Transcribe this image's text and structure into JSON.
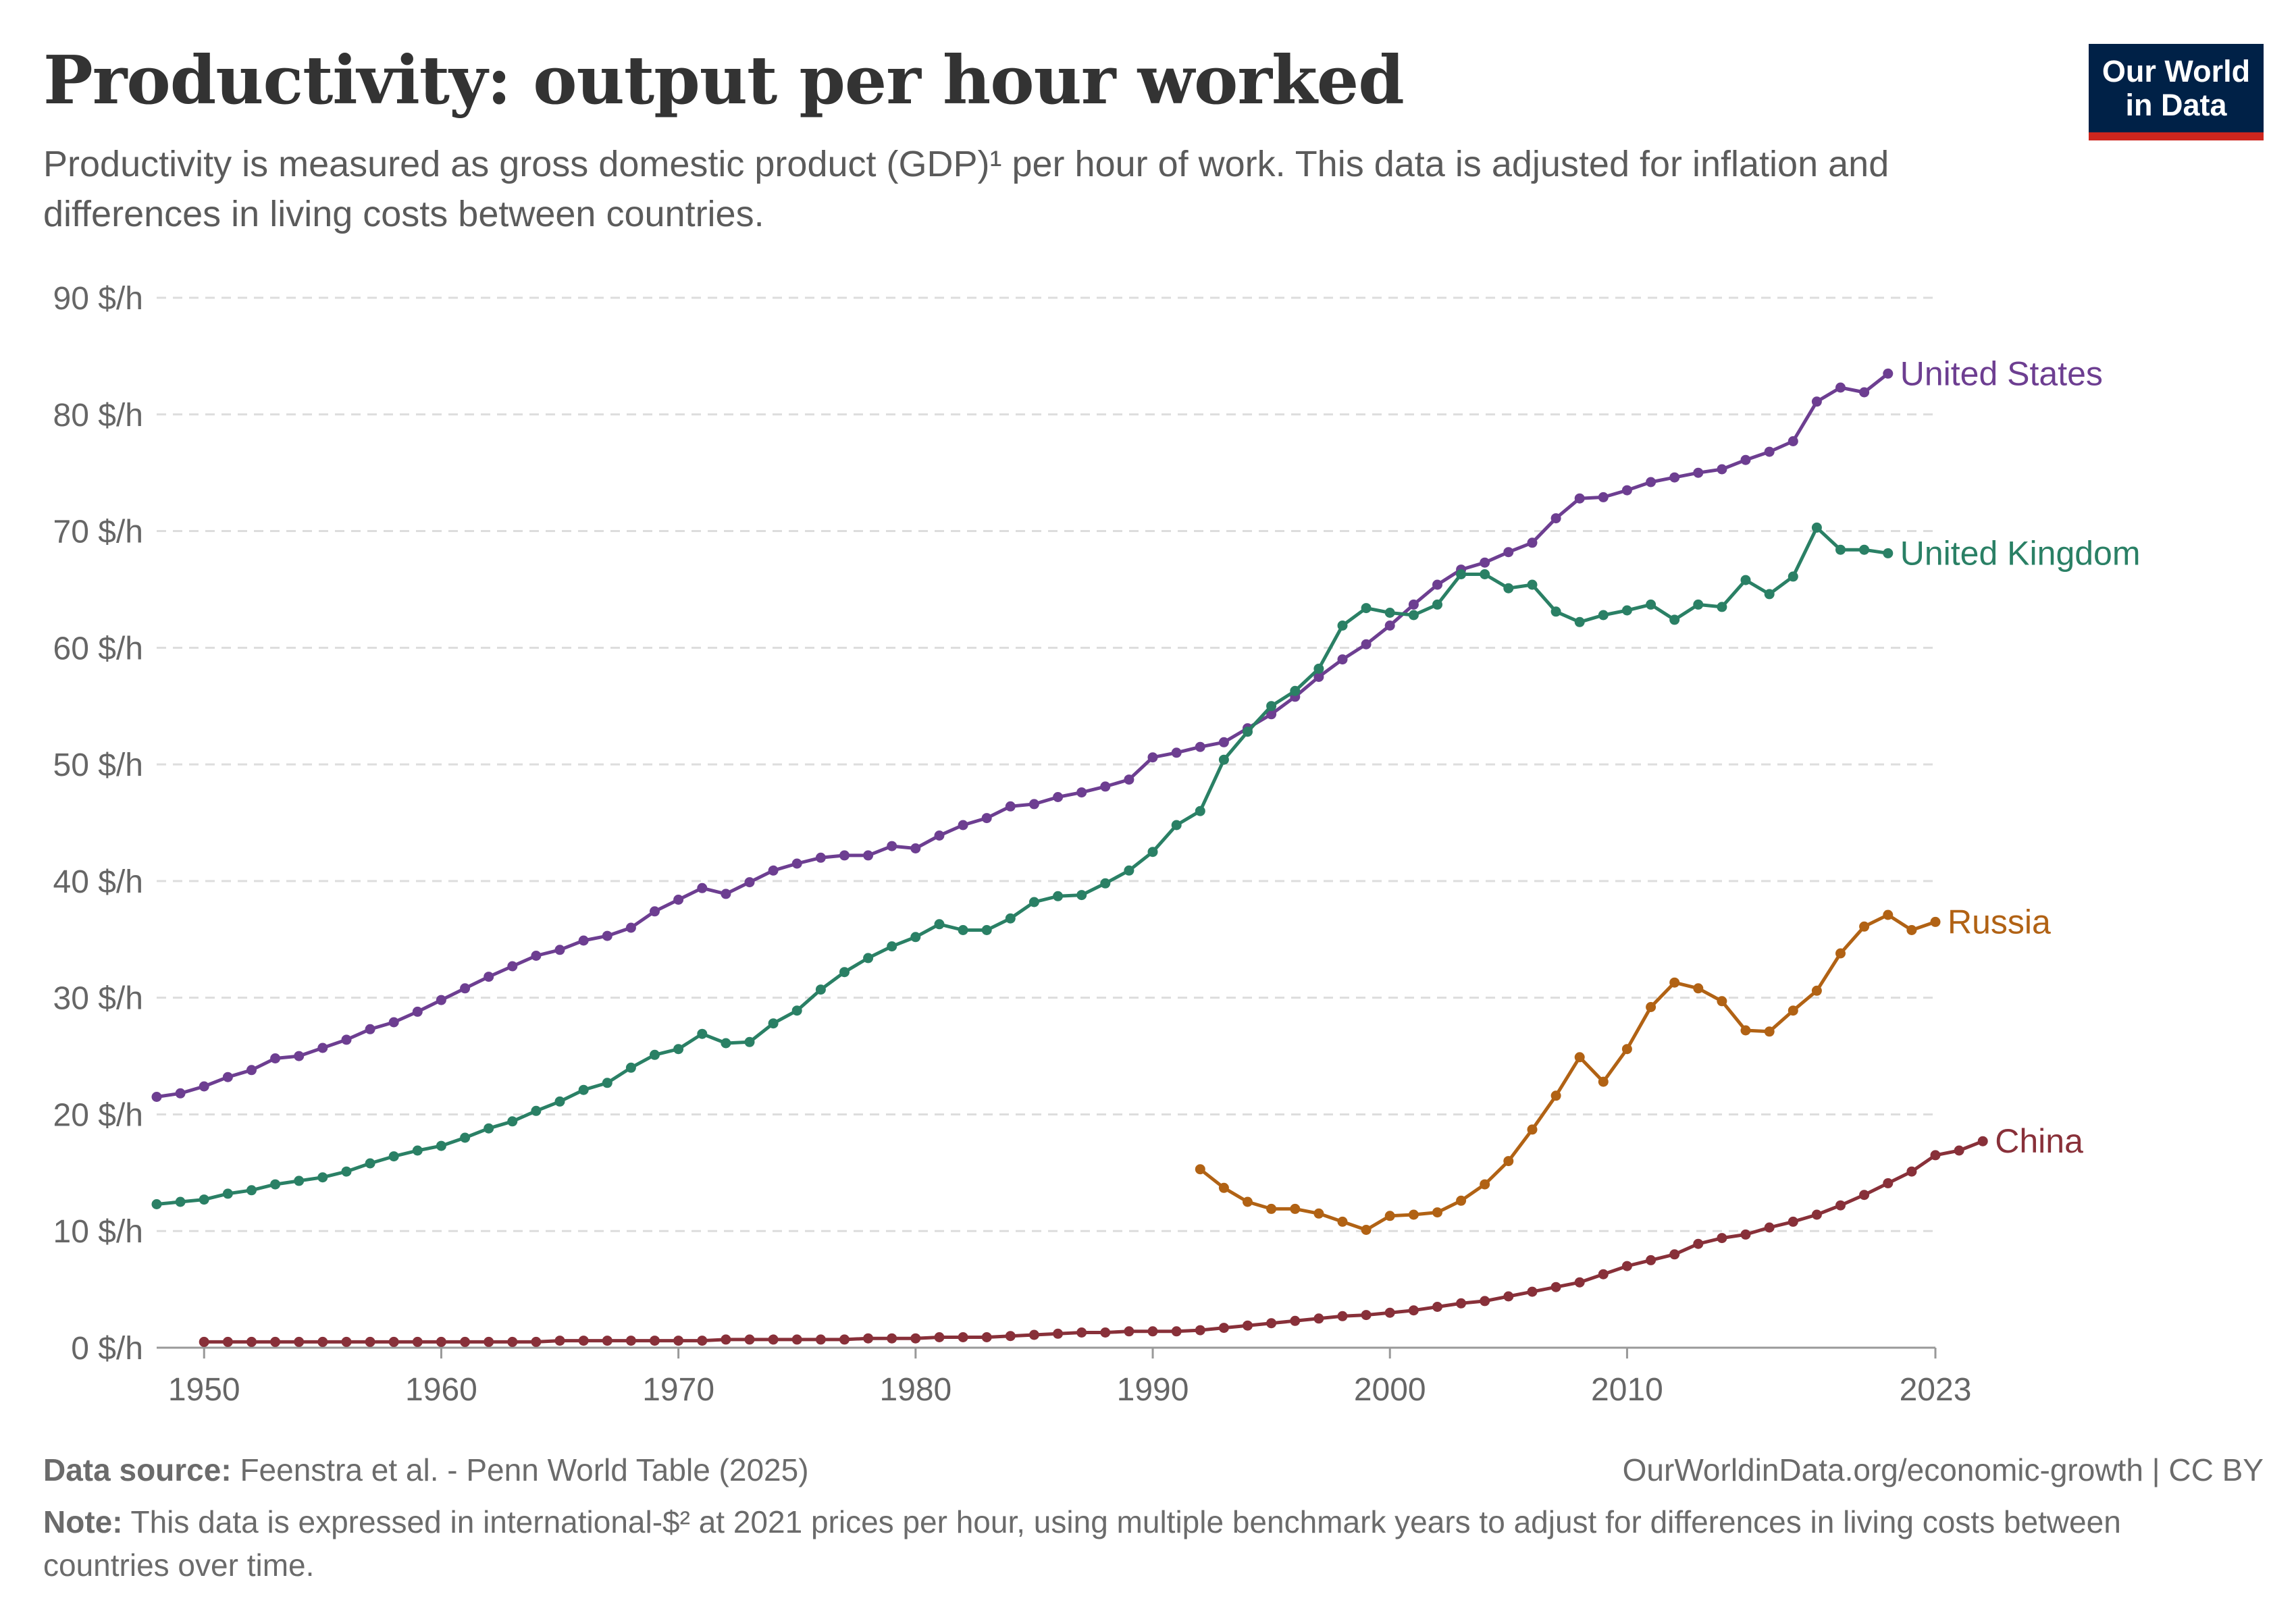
{
  "header": {
    "title": "Productivity: output per hour worked",
    "subtitle": "Productivity is measured as gross domestic product (GDP)¹ per hour of work. This data is adjusted for inflation and differences in living costs between countries."
  },
  "logo": {
    "line1": "Our World",
    "line2": "in Data"
  },
  "footer": {
    "source_label": "Data source:",
    "source_text": "Feenstra et al. - Penn World Table (2025)",
    "url": "OurWorldinData.org/economic-growth | CC BY",
    "note_label": "Note:",
    "note_text": "This data is expressed in international-$² at 2021 prices per hour, using multiple benchmark years to adjust for differences in living costs between countries over time."
  },
  "colors": {
    "united_states": "#6d3e91",
    "united_kingdom": "#2a8065",
    "russia": "#b16214",
    "china": "#883039",
    "grid": "#dddddd",
    "axis_text": "#666666"
  },
  "chart_data": {
    "type": "line",
    "title": "Productivity: output per hour worked",
    "xlabel": "",
    "ylabel": "",
    "xlim": [
      1948,
      2023
    ],
    "ylim": [
      0,
      90
    ],
    "x_ticks": [
      1950,
      1960,
      1970,
      1980,
      1990,
      2000,
      2010,
      2023
    ],
    "y_ticks": [
      0,
      10,
      20,
      30,
      40,
      50,
      60,
      70,
      80,
      90
    ],
    "y_tick_labels": [
      "0 $/h",
      "10 $/h",
      "20 $/h",
      "30 $/h",
      "40 $/h",
      "50 $/h",
      "60 $/h",
      "70 $/h",
      "80 $/h",
      "90 $/h"
    ],
    "grid": true,
    "legend": "inline labels at line ends",
    "series": [
      {
        "name": "United States",
        "color": "#6d3e91",
        "x_start": 1948,
        "values": [
          21.5,
          21.8,
          22.4,
          23.2,
          23.8,
          24.8,
          25.0,
          25.7,
          26.4,
          27.3,
          27.9,
          28.8,
          29.8,
          30.8,
          31.8,
          32.7,
          33.6,
          34.1,
          34.9,
          35.3,
          36.0,
          37.4,
          38.4,
          39.4,
          38.9,
          39.9,
          40.9,
          41.5,
          42.0,
          42.2,
          42.2,
          43.0,
          42.8,
          43.9,
          44.8,
          45.4,
          46.4,
          46.6,
          47.2,
          47.6,
          48.1,
          48.7,
          50.6,
          51.0,
          51.5,
          51.9,
          53.1,
          54.3,
          55.8,
          57.5,
          59.0,
          60.3,
          61.9,
          63.7,
          65.4,
          66.7,
          67.3,
          68.2,
          69.0,
          71.1,
          72.8,
          72.9,
          73.5,
          74.2,
          74.6,
          75.0,
          75.3,
          76.1,
          76.8,
          77.7,
          81.1,
          82.3,
          81.9,
          83.5
        ]
      },
      {
        "name": "United Kingdom",
        "color": "#2a8065",
        "x_start": 1948,
        "values": [
          12.3,
          12.5,
          12.7,
          13.2,
          13.5,
          14.0,
          14.3,
          14.6,
          15.1,
          15.8,
          16.4,
          16.9,
          17.3,
          18.0,
          18.8,
          19.4,
          20.3,
          21.1,
          22.1,
          22.7,
          24.0,
          25.1,
          25.6,
          26.9,
          26.1,
          26.2,
          27.8,
          28.9,
          30.7,
          32.2,
          33.4,
          34.4,
          35.2,
          36.3,
          35.8,
          35.8,
          36.8,
          38.2,
          38.7,
          38.8,
          39.8,
          40.9,
          42.5,
          44.8,
          46.0,
          50.4,
          52.8,
          55.0,
          56.3,
          58.2,
          61.9,
          63.4,
          63.0,
          62.8,
          63.7,
          66.3,
          66.3,
          65.1,
          65.4,
          63.1,
          62.2,
          62.8,
          63.2,
          63.7,
          62.4,
          63.7,
          63.5,
          65.8,
          64.6,
          66.1,
          70.3,
          68.4,
          68.4,
          68.1
        ]
      },
      {
        "name": "Russia",
        "color": "#b16214",
        "x_start": 1992,
        "values": [
          15.3,
          13.7,
          12.5,
          11.9,
          11.9,
          11.5,
          10.8,
          10.1,
          11.3,
          11.4,
          11.6,
          12.6,
          14.0,
          16.0,
          18.7,
          21.6,
          24.9,
          22.8,
          25.6,
          29.2,
          31.3,
          30.8,
          29.7,
          27.2,
          27.1,
          28.9,
          30.6,
          33.8,
          36.1,
          37.1,
          35.8,
          36.5
        ]
      },
      {
        "name": "China",
        "color": "#883039",
        "x_start": 1950,
        "values": [
          0.5,
          0.5,
          0.5,
          0.5,
          0.5,
          0.5,
          0.5,
          0.5,
          0.5,
          0.5,
          0.5,
          0.5,
          0.5,
          0.5,
          0.5,
          0.6,
          0.6,
          0.6,
          0.6,
          0.6,
          0.6,
          0.6,
          0.7,
          0.7,
          0.7,
          0.7,
          0.7,
          0.7,
          0.8,
          0.8,
          0.8,
          0.9,
          0.9,
          0.9,
          1.0,
          1.1,
          1.2,
          1.3,
          1.3,
          1.4,
          1.4,
          1.4,
          1.5,
          1.7,
          1.9,
          2.1,
          2.3,
          2.5,
          2.7,
          2.8,
          3.0,
          3.2,
          3.5,
          3.8,
          4.0,
          4.4,
          4.8,
          5.2,
          5.6,
          6.3,
          7.0,
          7.5,
          8.0,
          8.9,
          9.4,
          9.7,
          10.3,
          10.8,
          11.4,
          12.2,
          13.1,
          14.1,
          15.1,
          16.5,
          16.9,
          17.7
        ]
      }
    ]
  }
}
